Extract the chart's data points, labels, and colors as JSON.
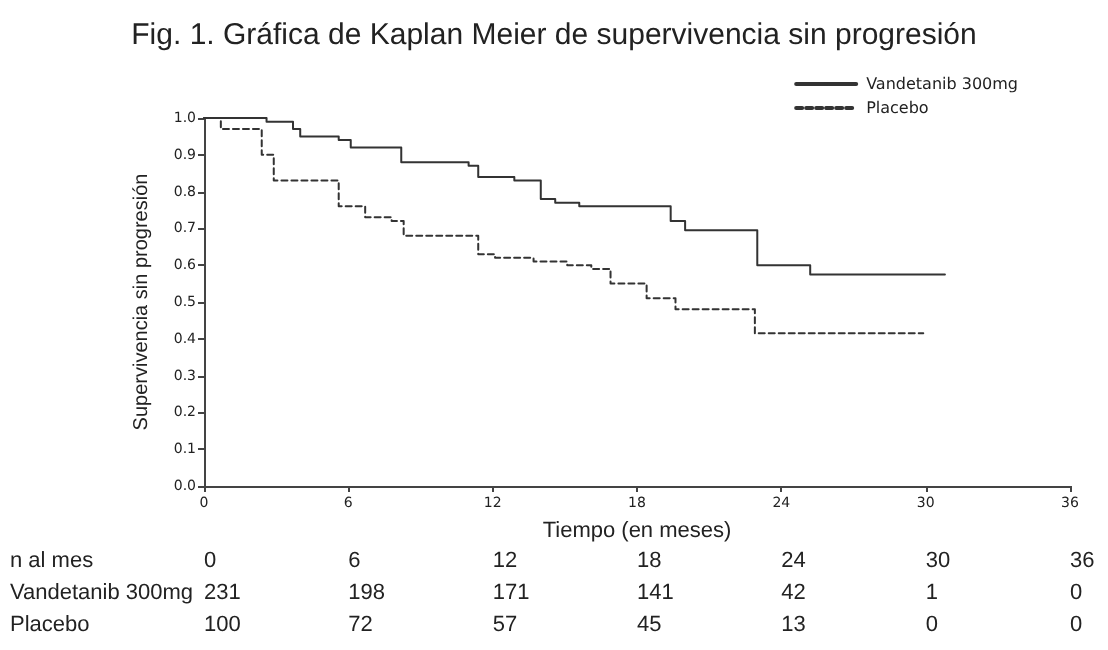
{
  "chart_data": {
    "type": "step",
    "title": "Fig. 1. Gráfica de Kaplan Meier de supervivencia sin progresión",
    "xlabel": "Tiempo (en meses)",
    "ylabel": "Supervivencia sin progresión",
    "xlim": [
      0,
      36
    ],
    "xticks": [
      0,
      6,
      12,
      18,
      24,
      30,
      36
    ],
    "ylim": [
      0,
      1
    ],
    "yticks": [
      {
        "value": 0,
        "label": "0.0"
      },
      {
        "value": 0.1,
        "label": "0.1"
      },
      {
        "value": 0.2,
        "label": "0.2"
      },
      {
        "value": 0.3,
        "label": "0.3"
      },
      {
        "value": 0.4,
        "label": "0.4"
      },
      {
        "value": 0.5,
        "label": "0.5"
      },
      {
        "value": 0.6,
        "label": "0.6"
      },
      {
        "value": 0.7,
        "label": "0.7"
      },
      {
        "value": 0.8,
        "label": "0.8"
      },
      {
        "value": 0.9,
        "label": "0.9"
      },
      {
        "value": 1,
        "label": "1.0"
      }
    ],
    "grid": false,
    "legend": "top right",
    "marker": "none",
    "series": [
      {
        "name": "Vandetanib 300mg",
        "color": "#333333",
        "line_style": "solid",
        "x": [
          0,
          2.6,
          3.7,
          4.0,
          5.6,
          6.1,
          8.2,
          11.0,
          11.4,
          12.9,
          14.0,
          14.6,
          15.6,
          19.4,
          20.0,
          23.0,
          25.2,
          30.8
        ],
        "values": [
          1.0,
          0.99,
          0.97,
          0.95,
          0.94,
          0.92,
          0.88,
          0.87,
          0.84,
          0.83,
          0.78,
          0.77,
          0.76,
          0.72,
          0.695,
          0.6,
          0.575,
          0.575
        ]
      },
      {
        "name": "Placebo",
        "color": "#333333",
        "line_style": "dashed",
        "x": [
          0,
          0.7,
          2.4,
          2.9,
          5.6,
          6.7,
          7.8,
          8.3,
          11.4,
          12.1,
          13.7,
          15.1,
          16.1,
          16.9,
          18.4,
          19.6,
          22.9,
          29.9
        ],
        "values": [
          1.0,
          0.97,
          0.9,
          0.83,
          0.76,
          0.73,
          0.72,
          0.68,
          0.63,
          0.62,
          0.61,
          0.6,
          0.59,
          0.55,
          0.51,
          0.48,
          0.415,
          0.415
        ]
      }
    ],
    "annotations": [
      "n al mes",
      "0",
      "6",
      "12",
      "18",
      "24",
      "30",
      "36",
      "Vandetanib 300mg",
      "231",
      "198",
      "171",
      "141",
      "42",
      "1",
      "0",
      "Placebo",
      "100",
      "72",
      "57",
      "45",
      "13",
      "0",
      "0"
    ]
  }
}
